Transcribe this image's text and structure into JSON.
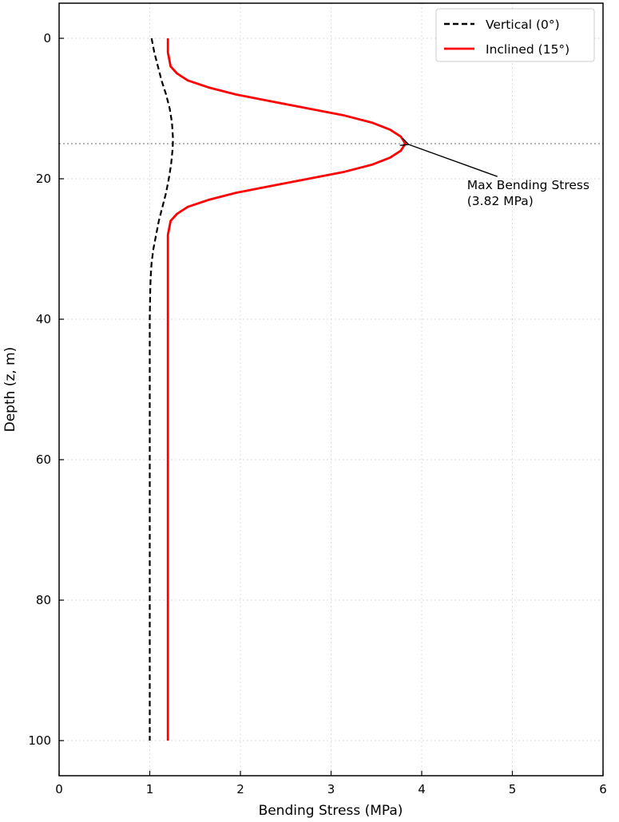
{
  "chart_data": {
    "type": "line",
    "xlabel": "Bending Stress (MPa)",
    "ylabel": "Depth (z, m)",
    "xlim": [
      0,
      6
    ],
    "ylim": [
      105,
      -5
    ],
    "y_inverted": true,
    "x_ticks": [
      "0",
      "1",
      "2",
      "3",
      "4",
      "5",
      "6"
    ],
    "y_ticks": [
      "0",
      "20",
      "40",
      "60",
      "80",
      "100"
    ],
    "x_tick_values": [
      0,
      1,
      2,
      3,
      4,
      5,
      6
    ],
    "y_tick_values": [
      0,
      20,
      40,
      60,
      80,
      100
    ],
    "grid": true,
    "legend_position": "top-right",
    "reference_line": {
      "depth": 15,
      "style": "dotted",
      "color": "#9e9e9e"
    },
    "series": [
      {
        "name": "Vertical (0°)",
        "color": "#000000",
        "style": "dashed",
        "points": [
          [
            1.02,
            0
          ],
          [
            1.05,
            2
          ],
          [
            1.09,
            4
          ],
          [
            1.13,
            6
          ],
          [
            1.18,
            8
          ],
          [
            1.22,
            10
          ],
          [
            1.245,
            12
          ],
          [
            1.255,
            14
          ],
          [
            1.255,
            15
          ],
          [
            1.25,
            16
          ],
          [
            1.235,
            18
          ],
          [
            1.21,
            20
          ],
          [
            1.18,
            22
          ],
          [
            1.14,
            24
          ],
          [
            1.1,
            26
          ],
          [
            1.07,
            28
          ],
          [
            1.04,
            30
          ],
          [
            1.02,
            32
          ],
          [
            1.01,
            34
          ],
          [
            1.005,
            36
          ],
          [
            1.0,
            40
          ],
          [
            1.0,
            60
          ],
          [
            1.0,
            80
          ],
          [
            1.0,
            100
          ]
        ]
      },
      {
        "name": "Inclined (15°)",
        "color": "#ff0000",
        "style": "solid",
        "points": [
          [
            1.2,
            0
          ],
          [
            1.2,
            2
          ],
          [
            1.23,
            4
          ],
          [
            1.3,
            5
          ],
          [
            1.42,
            6
          ],
          [
            1.65,
            7
          ],
          [
            1.95,
            8
          ],
          [
            2.35,
            9
          ],
          [
            2.75,
            10
          ],
          [
            3.15,
            11
          ],
          [
            3.45,
            12
          ],
          [
            3.65,
            13
          ],
          [
            3.77,
            14
          ],
          [
            3.82,
            15
          ],
          [
            3.77,
            16
          ],
          [
            3.65,
            17
          ],
          [
            3.45,
            18
          ],
          [
            3.15,
            19
          ],
          [
            2.75,
            20
          ],
          [
            2.35,
            21
          ],
          [
            1.95,
            22
          ],
          [
            1.65,
            23
          ],
          [
            1.42,
            24
          ],
          [
            1.3,
            25
          ],
          [
            1.23,
            26
          ],
          [
            1.2,
            28
          ],
          [
            1.2,
            40
          ],
          [
            1.2,
            60
          ],
          [
            1.2,
            80
          ],
          [
            1.2,
            100
          ]
        ]
      }
    ],
    "annotation": {
      "lines": [
        "Max Bending Stress",
        "(3.82 MPa)"
      ],
      "point": [
        3.82,
        15
      ],
      "text_anchor": [
        4.5,
        21.5
      ]
    }
  }
}
